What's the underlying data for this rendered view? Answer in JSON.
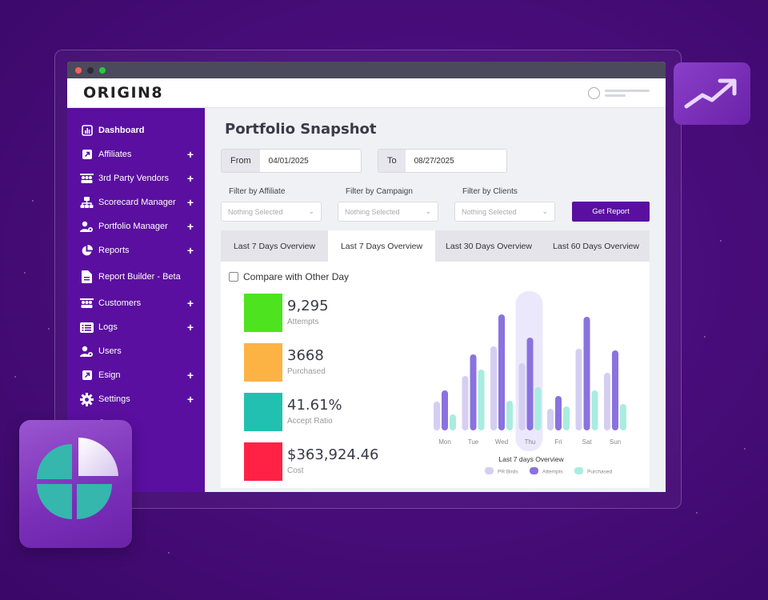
{
  "app": {
    "logo": "ORIGIN8",
    "colors": {
      "brand": "#5a0fa0",
      "tab_bg": "#e4e4ea",
      "main_bg": "#f0f1f5"
    }
  },
  "sidebar": {
    "items": [
      {
        "label": "Dashboard",
        "icon": "bar-chart-icon",
        "plus": false,
        "active": true
      },
      {
        "label": "Affiliates",
        "icon": "external-link-icon",
        "plus": true
      },
      {
        "label": "3rd Party Vendors",
        "icon": "group-icon",
        "plus": true
      },
      {
        "label": "Scorecard Manager",
        "icon": "org-chart-icon",
        "plus": true
      },
      {
        "label": "Portfolio Manager",
        "icon": "user-gear-icon",
        "plus": true
      },
      {
        "label": "Reports",
        "icon": "pie-chart-icon",
        "plus": true
      },
      {
        "label": "Report Builder - Beta",
        "icon": "document-icon",
        "plus": false
      },
      {
        "label": "Customers",
        "icon": "group-icon",
        "plus": true
      },
      {
        "label": "Logs",
        "icon": "id-card-icon",
        "plus": true
      },
      {
        "label": "Users",
        "icon": "user-gear-icon",
        "plus": false
      },
      {
        "label": "Esign",
        "icon": "external-link-icon",
        "plus": true
      },
      {
        "label": "Settings",
        "icon": "gear-icon",
        "plus": true
      },
      {
        "label": "Center",
        "icon": "",
        "plus": false
      }
    ]
  },
  "main": {
    "title": "Portfolio Snapshot",
    "from_label": "From",
    "from_value": "04/01/2025",
    "to_label": "To",
    "to_value": "08/27/2025",
    "filters": {
      "affiliate_label": "Filter by Affiliate",
      "campaign_label": "Filter by Campaign",
      "clients_label": "Filter by Clients",
      "placeholder": "Nothing Selected"
    },
    "get_report": "Get Report",
    "tabs": [
      "Last 7 Days Overview",
      "Last 7 Days Overview",
      "Last 30 Days Overview",
      "Last 60 Days Overview"
    ],
    "active_tab": 1,
    "compare_label": "Compare with Other Day",
    "metrics": [
      {
        "value": "9,295",
        "label": "Attempts",
        "color": "#4ee31f"
      },
      {
        "value": "3668",
        "label": "Purchased",
        "color": "#fdb244"
      },
      {
        "value": "41.61%",
        "label": "Accept Ratio",
        "color": "#22c0b0"
      },
      {
        "value": "$363,924.46",
        "label": "Cost",
        "color": "#ff2244"
      }
    ]
  },
  "chart_data": {
    "type": "bar",
    "title": "Last 7 days Overview",
    "categories": [
      "Mon",
      "Tue",
      "Wed",
      "Thu",
      "Fri",
      "Sat",
      "Sun"
    ],
    "highlight": "Thu",
    "series": [
      {
        "name": "PR Birds",
        "color": "#d4cff2",
        "values": [
          36,
          68,
          105,
          84,
          27,
          102,
          72
        ]
      },
      {
        "name": "Attempts",
        "color": "#8a72e0",
        "values": [
          50,
          95,
          145,
          116,
          43,
          142,
          100
        ]
      },
      {
        "name": "Purchased",
        "color": "#a9ece0",
        "values": [
          20,
          76,
          37,
          54,
          30,
          50,
          33
        ]
      }
    ]
  }
}
